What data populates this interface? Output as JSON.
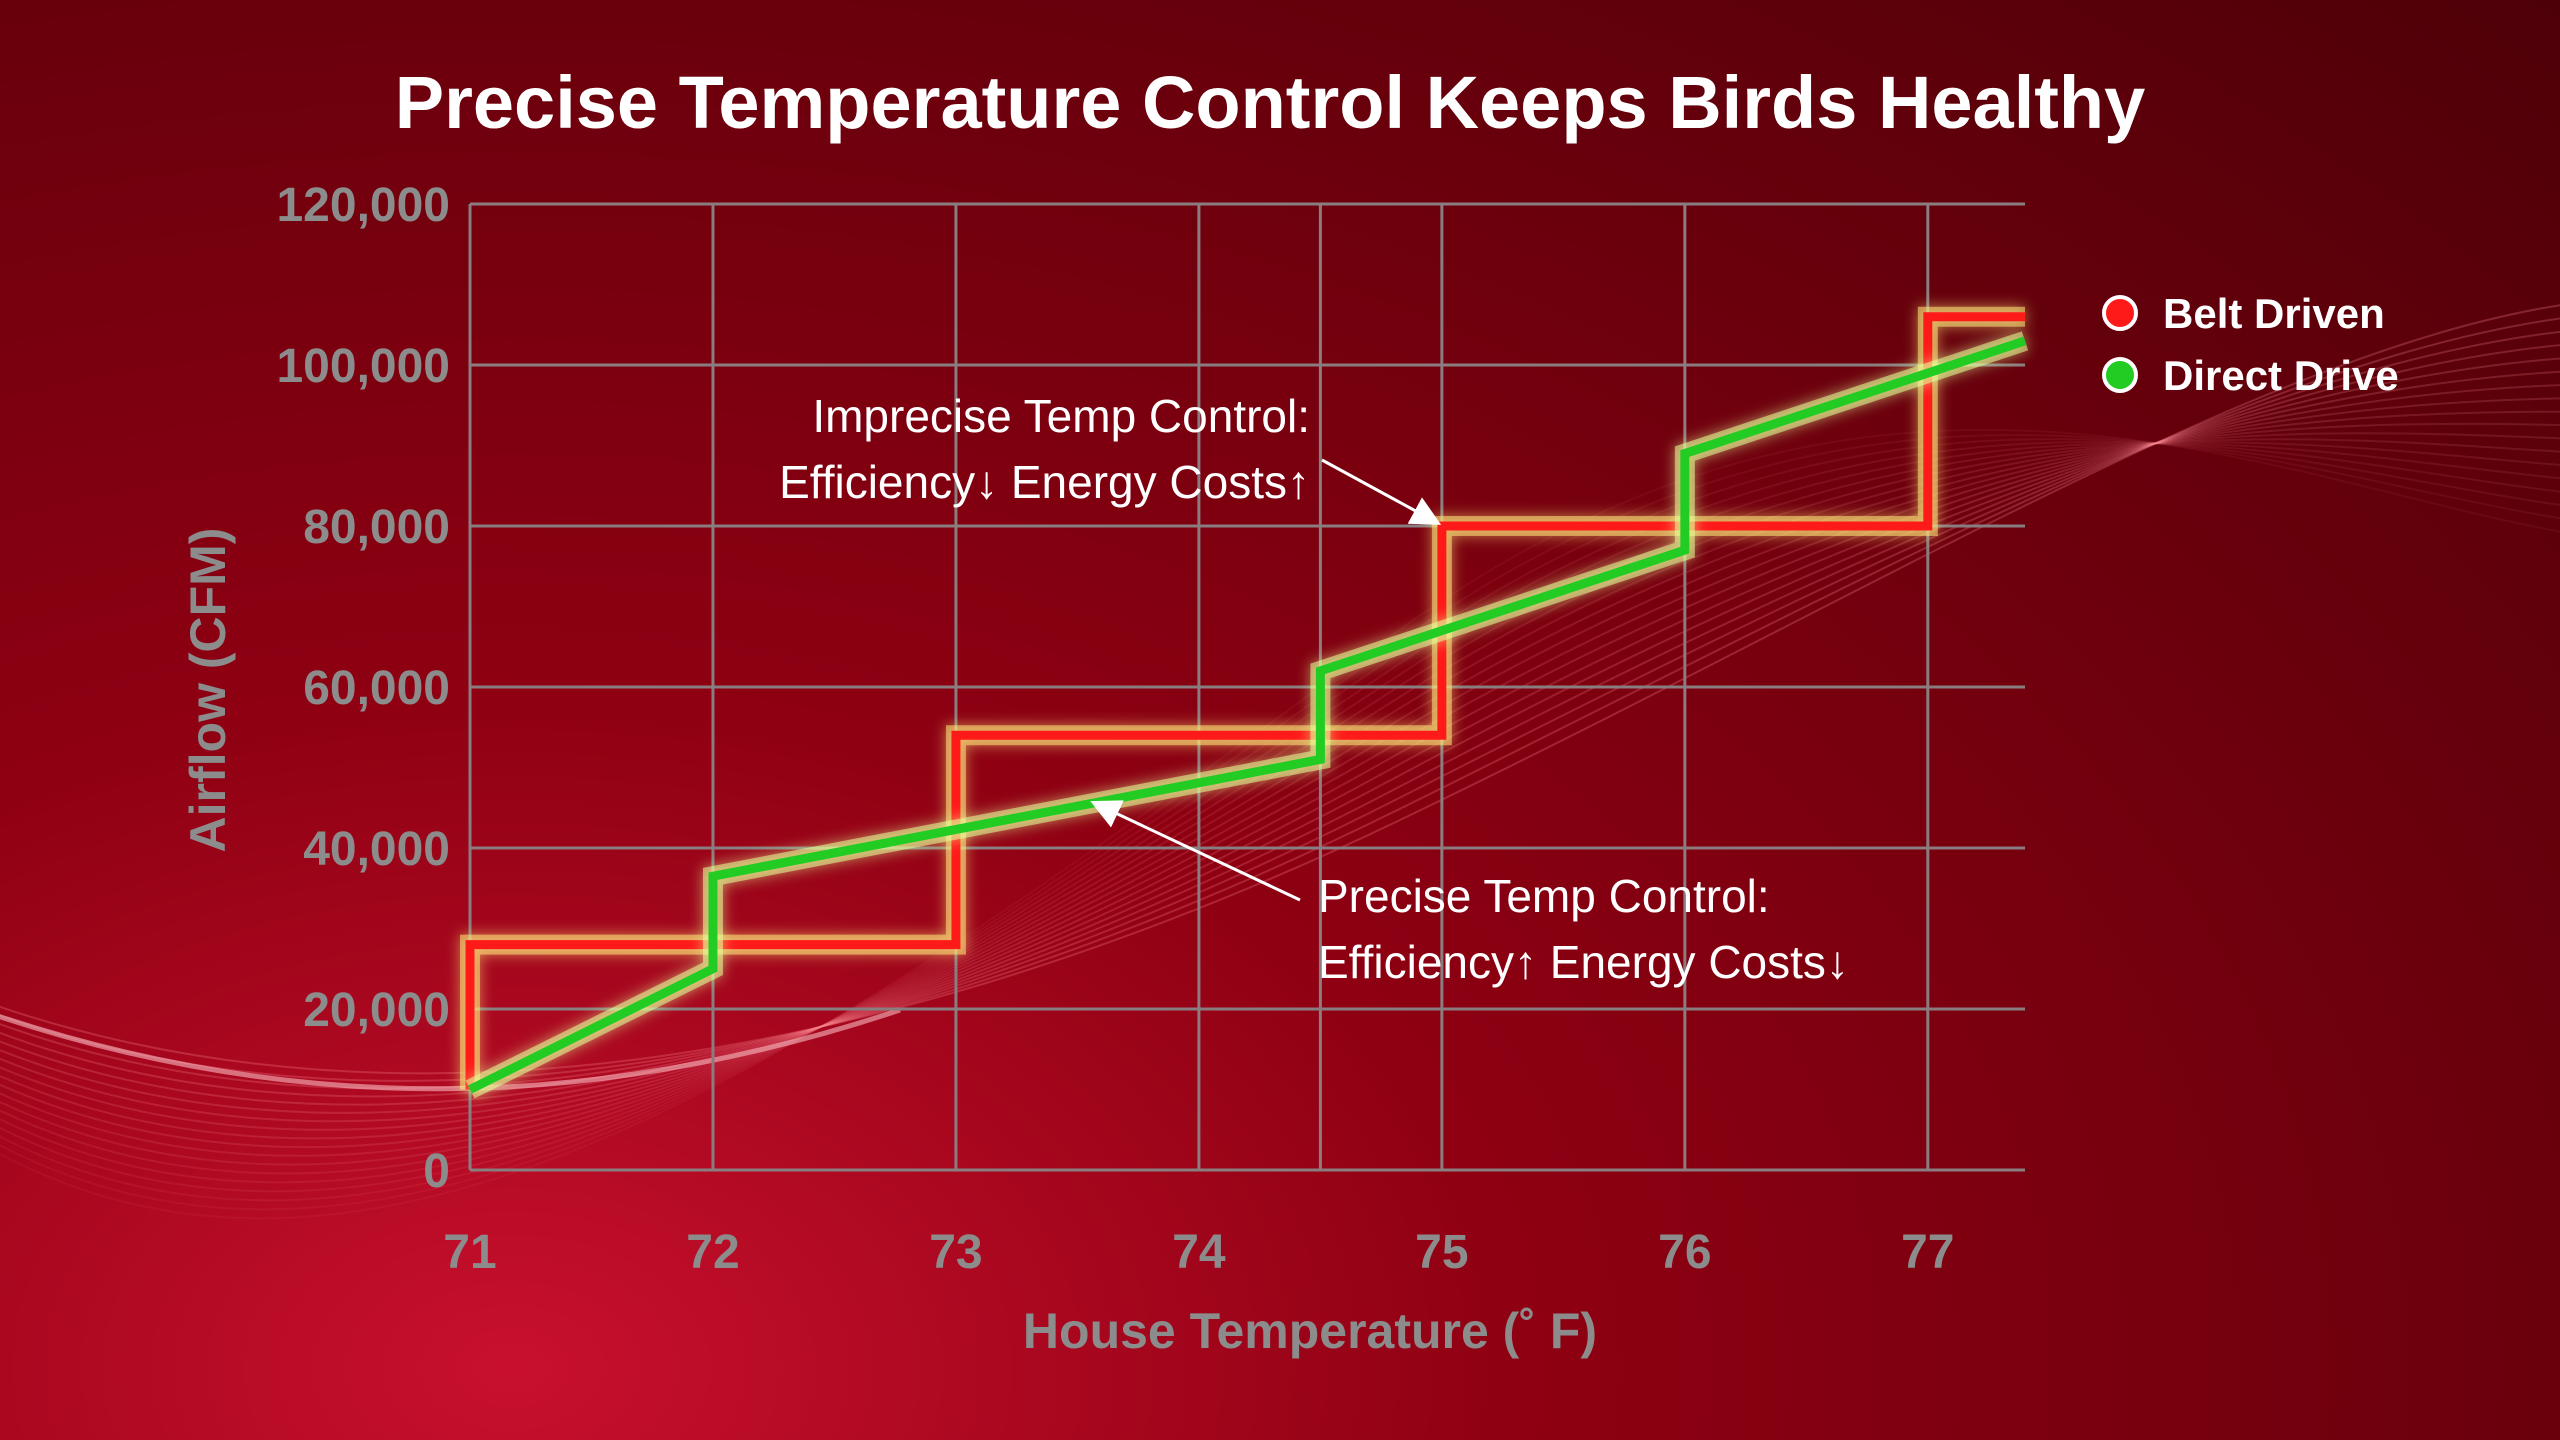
{
  "chart_data": {
    "type": "line",
    "title": "Precise Temperature Control Keeps Birds Healthy",
    "xlabel": "House Temperature (˚ F)",
    "ylabel": "Airflow (CFM)",
    "xlim": [
      71,
      77.4
    ],
    "ylim": [
      0,
      120000
    ],
    "x_ticks": [
      71,
      72,
      73,
      74,
      75,
      76,
      77
    ],
    "x_tick_labels": [
      "71",
      "72",
      "73",
      "74",
      "75",
      "76",
      "77"
    ],
    "y_ticks": [
      0,
      20000,
      40000,
      60000,
      80000,
      100000,
      120000
    ],
    "y_tick_labels": [
      "0",
      "20,000",
      "40,000",
      "60,000",
      "80,000",
      "100,000",
      "120,000"
    ],
    "grid": true,
    "legend_position": "right",
    "series": [
      {
        "name": "Belt Driven",
        "color": "#ff1a1a",
        "points": [
          [
            71,
            10000
          ],
          [
            71,
            28000
          ],
          [
            73,
            28000
          ],
          [
            73,
            54000
          ],
          [
            75,
            54000
          ],
          [
            75,
            80000
          ],
          [
            77,
            80000
          ],
          [
            77,
            106000
          ],
          [
            77.4,
            106000
          ]
        ]
      },
      {
        "name": "Direct Drive",
        "color": "#22cc22",
        "points": [
          [
            71,
            10000
          ],
          [
            72,
            25000
          ],
          [
            72,
            36500
          ],
          [
            74.5,
            51000
          ],
          [
            74.5,
            62000
          ],
          [
            76,
            77000
          ],
          [
            76,
            89000
          ],
          [
            77.4,
            103000
          ]
        ]
      }
    ],
    "annotations": [
      {
        "lines": [
          "Imprecise Temp Control:",
          "Efficiency↓   Energy Costs↑"
        ],
        "arrow_target": [
          75,
          80000
        ]
      },
      {
        "lines": [
          "Precise Temp Control:",
          "Efficiency↑   Energy Costs↓"
        ],
        "arrow_target": [
          73.6,
          46000
        ]
      }
    ]
  }
}
